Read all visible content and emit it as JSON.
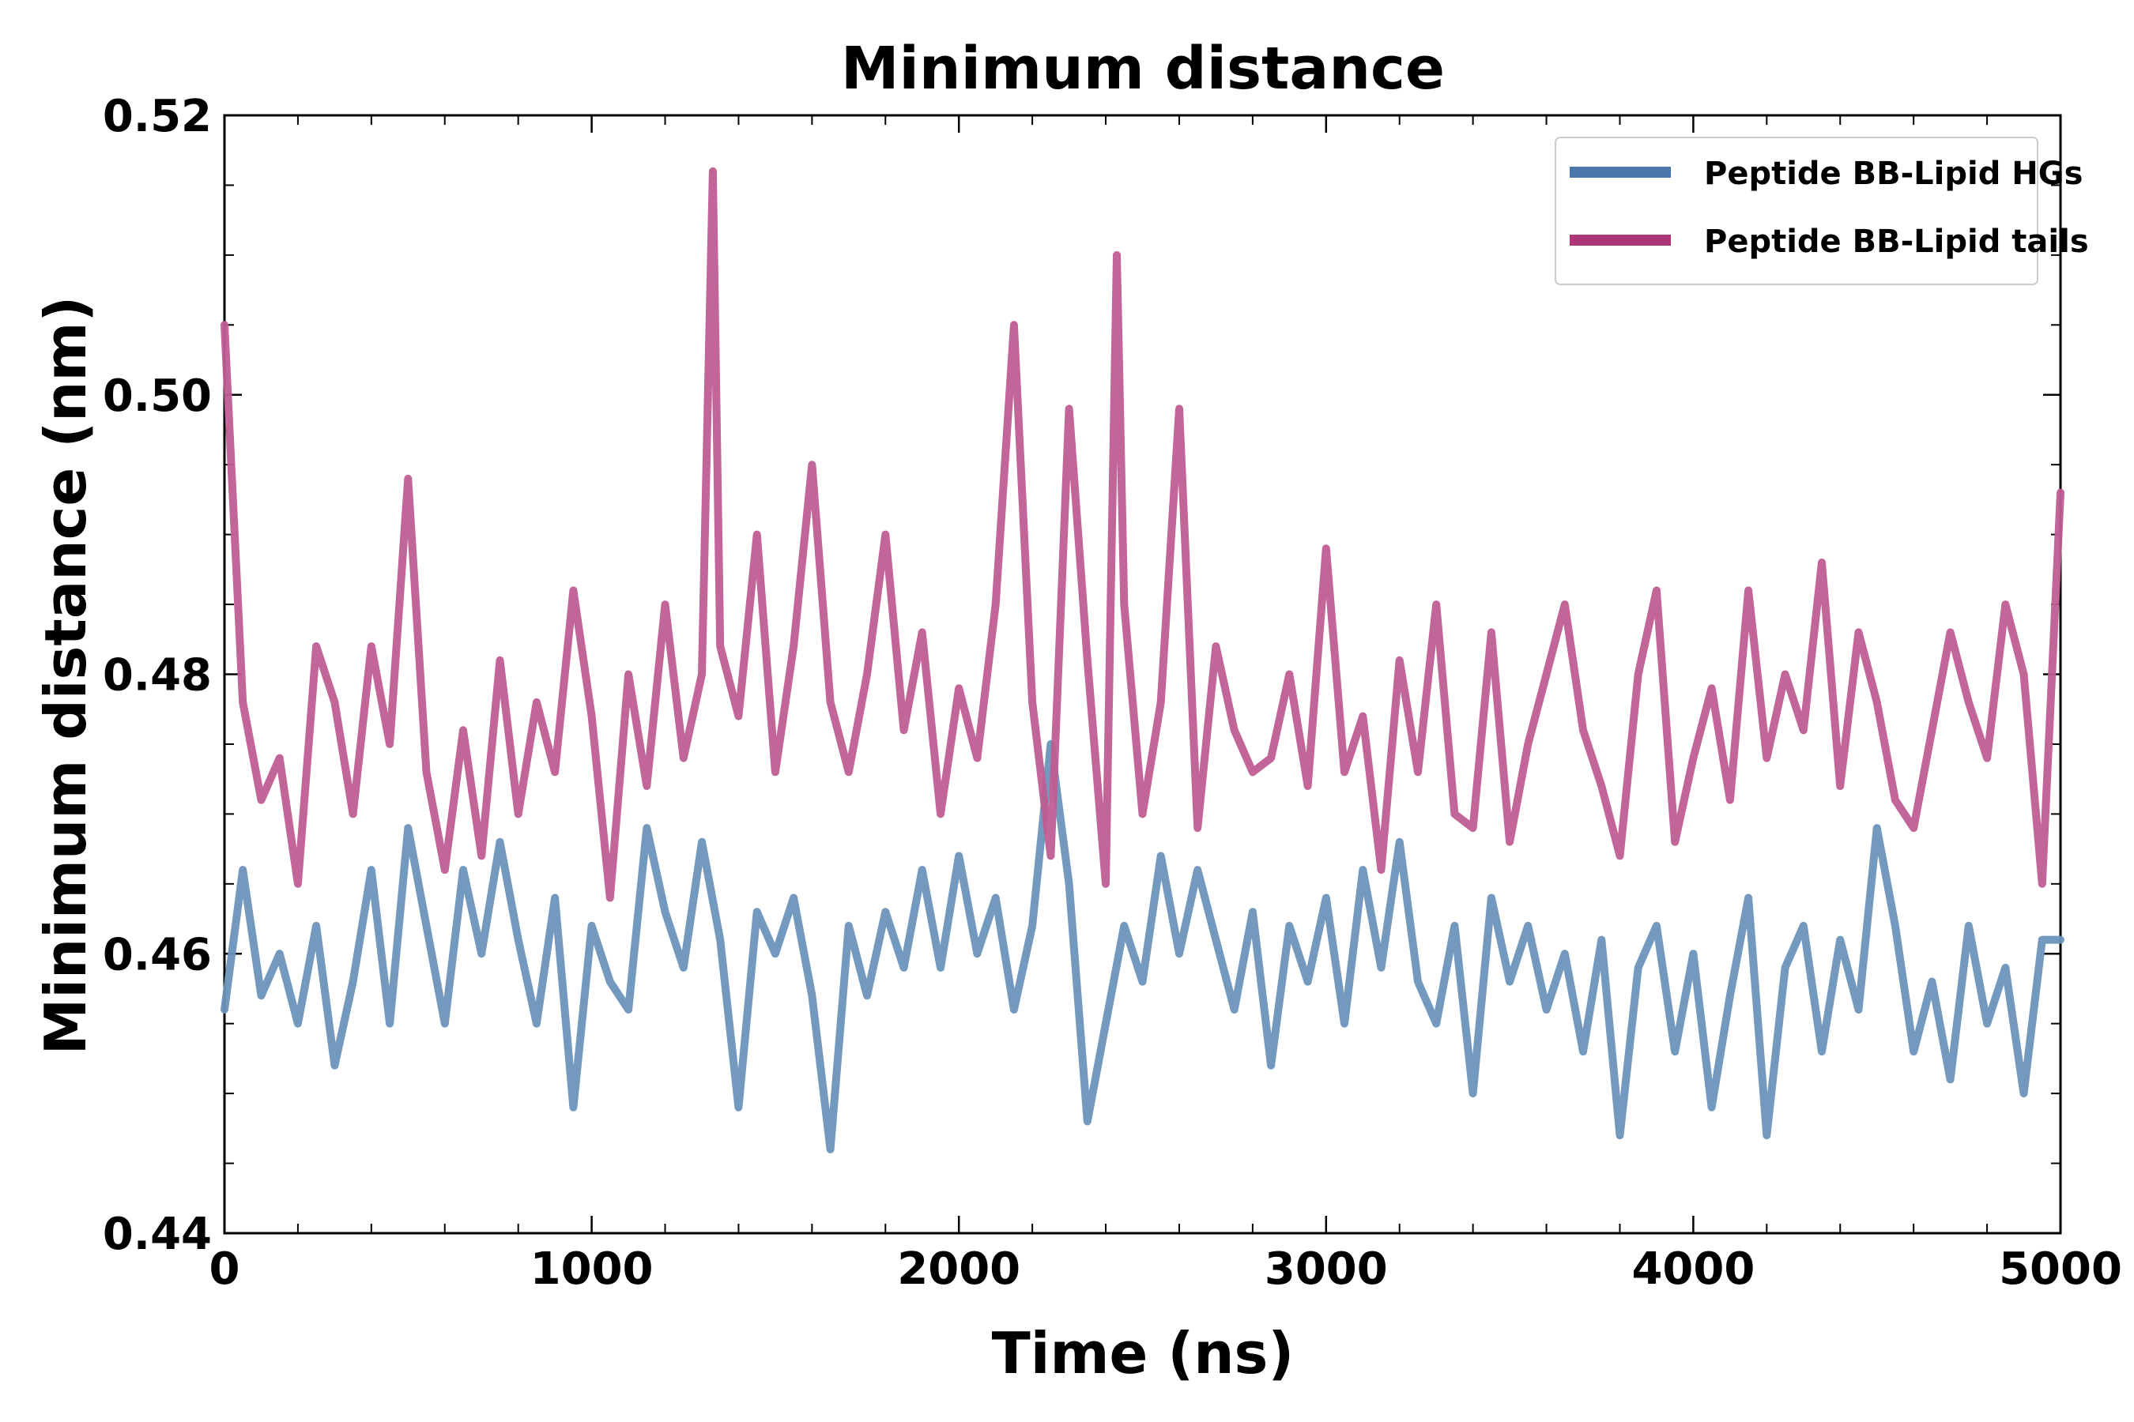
{
  "chart_data": {
    "type": "line",
    "title": "Minimum distance",
    "xlabel": "Time (ns)",
    "ylabel": "Minimum distance (nm)",
    "xlim": [
      0,
      5000
    ],
    "ylim": [
      0.44,
      0.52
    ],
    "x_ticks": [
      0,
      1000,
      2000,
      3000,
      4000,
      5000
    ],
    "x_tick_labels": [
      "0",
      "1000",
      "2000",
      "3000",
      "4000",
      "5000"
    ],
    "y_ticks": [
      0.44,
      0.46,
      0.48,
      0.5,
      0.52
    ],
    "y_tick_labels": [
      "0.44",
      "0.46",
      "0.48",
      "0.50",
      "0.52"
    ],
    "x_minor_step": 200,
    "y_minor_step": 0.005,
    "legend_position": "top-right",
    "series": [
      {
        "name": "Peptide BB-Lipid HGs",
        "color": "#6b93bb",
        "legend_color": "#4a78ad",
        "x": [
          0,
          50,
          100,
          150,
          200,
          250,
          300,
          350,
          400,
          450,
          500,
          550,
          600,
          650,
          700,
          750,
          800,
          850,
          900,
          950,
          1000,
          1050,
          1100,
          1150,
          1200,
          1250,
          1300,
          1350,
          1400,
          1450,
          1500,
          1550,
          1600,
          1650,
          1700,
          1750,
          1800,
          1850,
          1900,
          1950,
          2000,
          2050,
          2100,
          2150,
          2200,
          2250,
          2300,
          2350,
          2400,
          2450,
          2500,
          2550,
          2600,
          2650,
          2700,
          2750,
          2800,
          2850,
          2900,
          2950,
          3000,
          3050,
          3100,
          3150,
          3200,
          3250,
          3300,
          3350,
          3400,
          3450,
          3500,
          3550,
          3600,
          3650,
          3700,
          3750,
          3800,
          3850,
          3900,
          3950,
          4000,
          4050,
          4100,
          4150,
          4200,
          4250,
          4300,
          4350,
          4400,
          4450,
          4500,
          4550,
          4600,
          4650,
          4700,
          4750,
          4800,
          4850,
          4900,
          4950,
          5000
        ],
        "values": [
          0.456,
          0.466,
          0.457,
          0.46,
          0.455,
          0.462,
          0.452,
          0.458,
          0.466,
          0.455,
          0.469,
          0.462,
          0.455,
          0.466,
          0.46,
          0.468,
          0.461,
          0.455,
          0.464,
          0.449,
          0.462,
          0.458,
          0.456,
          0.469,
          0.463,
          0.459,
          0.468,
          0.461,
          0.449,
          0.463,
          0.46,
          0.464,
          0.457,
          0.446,
          0.462,
          0.457,
          0.463,
          0.459,
          0.466,
          0.459,
          0.467,
          0.46,
          0.464,
          0.456,
          0.462,
          0.475,
          0.465,
          0.448,
          0.455,
          0.462,
          0.458,
          0.467,
          0.46,
          0.466,
          0.461,
          0.456,
          0.463,
          0.452,
          0.462,
          0.458,
          0.464,
          0.455,
          0.466,
          0.459,
          0.468,
          0.458,
          0.455,
          0.462,
          0.45,
          0.464,
          0.458,
          0.462,
          0.456,
          0.46,
          0.453,
          0.461,
          0.447,
          0.459,
          0.462,
          0.453,
          0.46,
          0.449,
          0.457,
          0.464,
          0.447,
          0.459,
          0.462,
          0.453,
          0.461,
          0.456,
          0.469,
          0.462,
          0.453,
          0.458,
          0.451,
          0.462,
          0.455,
          0.459,
          0.45,
          0.461,
          0.461
        ]
      },
      {
        "name": "Peptide BB-Lipid tails",
        "color": "#bf5d92",
        "legend_color": "#ad3477",
        "x": [
          0,
          50,
          100,
          150,
          200,
          250,
          300,
          350,
          400,
          450,
          500,
          550,
          600,
          650,
          700,
          750,
          800,
          850,
          900,
          950,
          1000,
          1050,
          1100,
          1150,
          1200,
          1250,
          1300,
          1330,
          1350,
          1400,
          1450,
          1500,
          1550,
          1600,
          1650,
          1700,
          1750,
          1800,
          1850,
          1900,
          1950,
          2000,
          2050,
          2100,
          2150,
          2200,
          2250,
          2300,
          2350,
          2400,
          2430,
          2450,
          2500,
          2550,
          2600,
          2650,
          2700,
          2750,
          2800,
          2850,
          2900,
          2950,
          3000,
          3050,
          3100,
          3150,
          3200,
          3250,
          3300,
          3350,
          3400,
          3450,
          3500,
          3550,
          3600,
          3650,
          3700,
          3750,
          3800,
          3850,
          3900,
          3950,
          4000,
          4050,
          4100,
          4150,
          4200,
          4250,
          4300,
          4350,
          4400,
          4450,
          4500,
          4550,
          4600,
          4650,
          4700,
          4750,
          4800,
          4850,
          4900,
          4950,
          5000
        ],
        "values": [
          0.505,
          0.478,
          0.471,
          0.474,
          0.465,
          0.482,
          0.478,
          0.47,
          0.482,
          0.475,
          0.494,
          0.473,
          0.466,
          0.476,
          0.467,
          0.481,
          0.47,
          0.478,
          0.473,
          0.486,
          0.477,
          0.464,
          0.48,
          0.472,
          0.485,
          0.474,
          0.48,
          0.516,
          0.482,
          0.477,
          0.49,
          0.473,
          0.482,
          0.495,
          0.478,
          0.473,
          0.48,
          0.49,
          0.476,
          0.483,
          0.47,
          0.479,
          0.474,
          0.485,
          0.505,
          0.478,
          0.467,
          0.499,
          0.481,
          0.465,
          0.51,
          0.485,
          0.47,
          0.478,
          0.499,
          0.469,
          0.482,
          0.476,
          0.473,
          0.474,
          0.48,
          0.472,
          0.489,
          0.473,
          0.477,
          0.466,
          0.481,
          0.473,
          0.485,
          0.47,
          0.469,
          0.483,
          0.468,
          0.475,
          0.48,
          0.485,
          0.476,
          0.472,
          0.467,
          0.48,
          0.486,
          0.468,
          0.474,
          0.479,
          0.471,
          0.486,
          0.474,
          0.48,
          0.476,
          0.488,
          0.472,
          0.483,
          0.478,
          0.471,
          0.469,
          0.476,
          0.483,
          0.478,
          0.474,
          0.485,
          0.48,
          0.465,
          0.493
        ]
      }
    ]
  }
}
